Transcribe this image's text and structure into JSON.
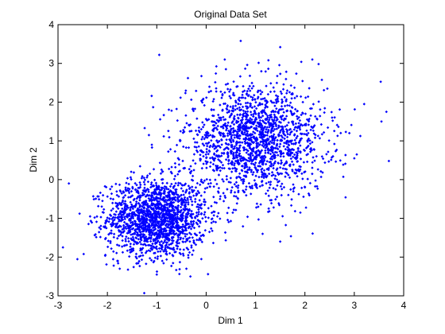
{
  "chart_data": {
    "type": "scatter",
    "title": "Original Data Set",
    "xlabel": "Dim 1",
    "ylabel": "Dim 2",
    "xlim": [
      -3,
      4
    ],
    "ylim": [
      -3,
      4
    ],
    "xticks": [
      -3,
      -2,
      -1,
      0,
      1,
      2,
      3,
      4
    ],
    "yticks": [
      -3,
      -2,
      -1,
      0,
      1,
      2,
      3,
      4
    ],
    "grid": false,
    "marker_color": "#0000ff",
    "series": [
      {
        "clusters": [
          {
            "center": [
              -1.0,
              -1.0
            ],
            "spread": [
              0.5,
              0.5
            ],
            "count": 1700
          },
          {
            "center": [
              1.0,
              1.0
            ],
            "spread": [
              0.7,
              0.7
            ],
            "count": 1700
          }
        ],
        "points": [
          [
            -2.78,
            -0.1
          ],
          [
            -2.9,
            -1.75
          ],
          [
            0.7,
            3.58
          ],
          [
            1.5,
            3.42
          ],
          [
            -0.95,
            3.22
          ],
          [
            3.7,
            0.48
          ],
          [
            3.65,
            1.75
          ],
          [
            3.55,
            1.5
          ],
          [
            3.2,
            1.95
          ],
          [
            3.05,
            0.65
          ],
          [
            2.55,
            1.6
          ],
          [
            1.5,
            -1.6
          ],
          [
            0.9,
            -0.2
          ],
          [
            -0.7,
            1.78
          ],
          [
            -1.1,
            0.9
          ],
          [
            -2.1,
            -0.55
          ],
          [
            -2.35,
            -0.95
          ],
          [
            -1.0,
            -2.45
          ],
          [
            -0.4,
            -2.3
          ],
          [
            -1.75,
            -2.3
          ],
          [
            3.0,
            0.55
          ],
          [
            2.9,
            1.2
          ],
          [
            2.15,
            3.1
          ],
          [
            0.4,
            2.85
          ],
          [
            2.0,
            -0.2
          ]
        ]
      }
    ]
  }
}
